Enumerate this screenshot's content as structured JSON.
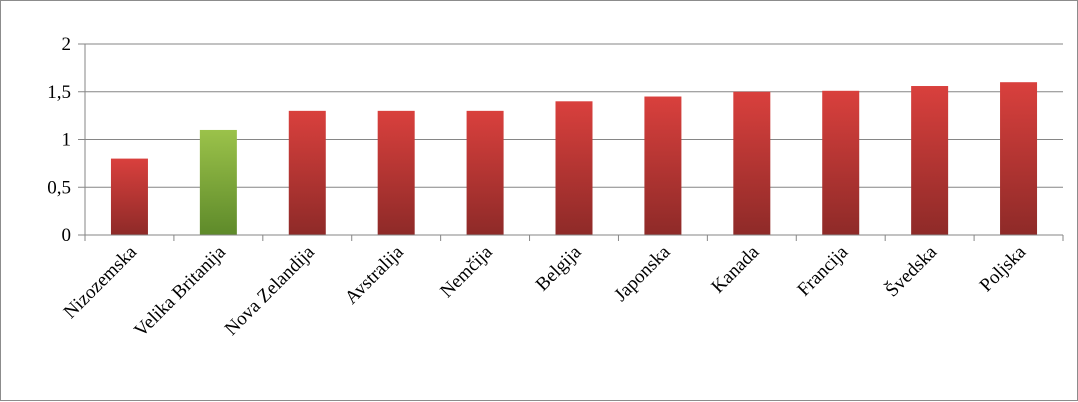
{
  "chart_data": {
    "type": "bar",
    "categories": [
      "Nizozemska",
      "Velika Britanija",
      "Nova Zelandija",
      "Avstralija",
      "Nemčija",
      "Belgija",
      "Japonska",
      "Kanada",
      "Francija",
      "Švedska",
      "Poljska"
    ],
    "values": [
      0.8,
      1.1,
      1.3,
      1.3,
      1.3,
      1.4,
      1.45,
      1.5,
      1.51,
      1.56,
      1.6
    ],
    "highlight_index": 1,
    "title": "",
    "xlabel": "",
    "ylabel": "",
    "ylim": [
      0,
      2
    ],
    "yticks": [
      0,
      0.5,
      1,
      1.5,
      2
    ],
    "ytick_labels": [
      "0",
      "0,5",
      "1",
      "1,5",
      "2"
    ],
    "grid": "horizontal",
    "legend": "none",
    "colors": {
      "bar_top": "#d9403d",
      "bar_bottom": "#8e2a28",
      "highlight_top": "#9bc24a",
      "highlight_bottom": "#5e8a2a",
      "grid": "#868686",
      "axis": "#868686"
    }
  }
}
